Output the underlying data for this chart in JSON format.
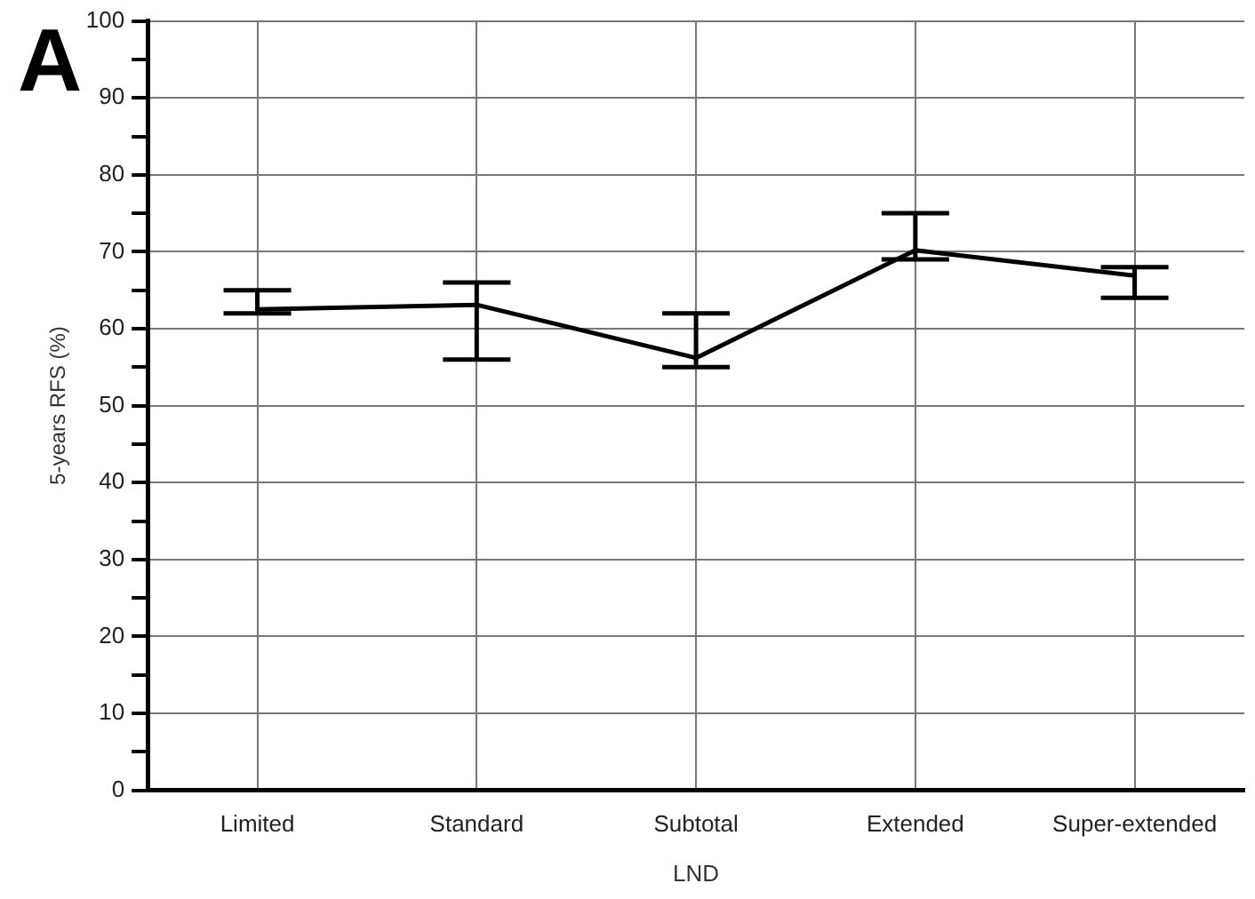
{
  "chart_data": {
    "type": "line",
    "xlabel": "LND",
    "ylabel": "5-years RFS (%)",
    "annotations": [
      "A"
    ],
    "categories": [
      "Limited",
      "Standard",
      "Subtotal",
      "Extended",
      "Super-extended"
    ],
    "series": [
      {
        "color": "#000000",
        "values": [
          62.5,
          63.1,
          56.2,
          70.2,
          66.9
        ],
        "errors": [
          [
            62,
            65
          ],
          [
            56,
            66
          ],
          [
            55,
            62
          ],
          [
            69,
            75
          ],
          [
            64,
            68
          ]
        ]
      }
    ],
    "ylim": [
      0,
      100
    ],
    "yticks": [
      0,
      {
        "value": 5,
        "label": null
      },
      10,
      {
        "value": 15,
        "label": null
      },
      20,
      {
        "value": 25,
        "label": null
      },
      30,
      {
        "value": 35,
        "label": null
      },
      40,
      {
        "value": 45,
        "label": null
      },
      50,
      {
        "value": 55,
        "label": null
      },
      60,
      {
        "value": 65,
        "label": null
      },
      70,
      {
        "value": 75,
        "label": null
      },
      80,
      {
        "value": 85,
        "label": null
      },
      90,
      {
        "value": 95,
        "label": null
      },
      100
    ],
    "grid": true,
    "legend": false,
    "marker": "none",
    "line_style": "solid"
  }
}
